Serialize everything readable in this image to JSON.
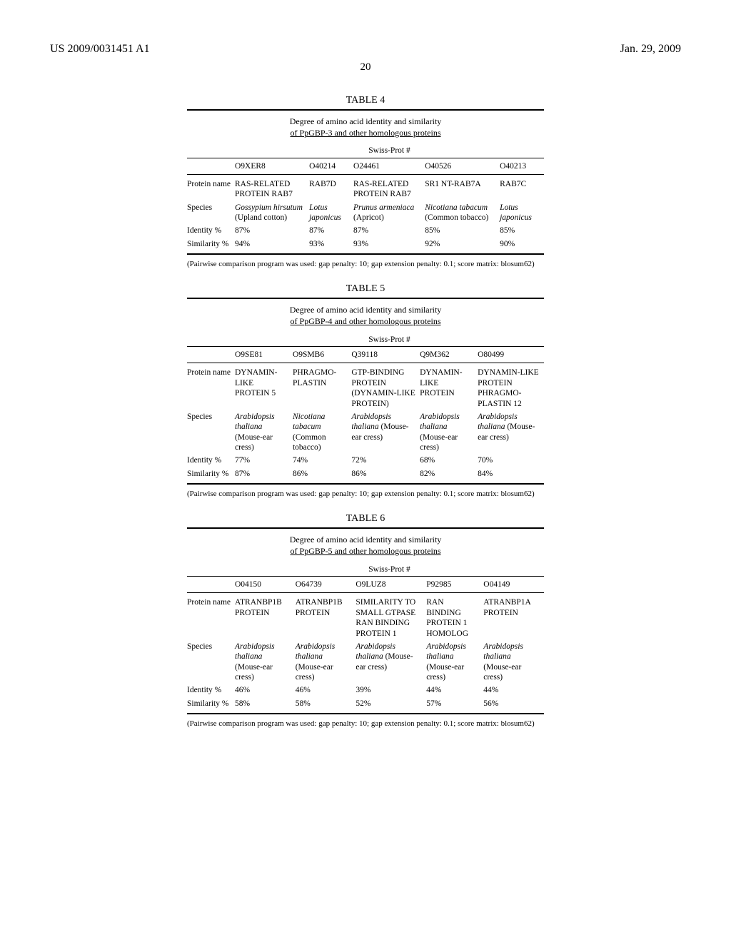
{
  "header": {
    "pub_number": "US 2009/0031451 A1",
    "date": "Jan. 29, 2009"
  },
  "page_number": "20",
  "table4": {
    "title": "TABLE 4",
    "caption_line1": "Degree of amino acid identity and similarity",
    "caption_line2": "of PpGBP-3 and other homologous proteins",
    "swissprot_label": "Swiss-Prot #",
    "columns": [
      "O9XER8",
      "O40214",
      "O24461",
      "O40526",
      "O40213"
    ],
    "rows": [
      {
        "label": "Protein name",
        "cells": [
          "RAS-RELATED PROTEIN RAB7",
          "RAB7D",
          "RAS-RELATED PROTEIN RAB7",
          "SR1 NT-RAB7A",
          "RAB7C"
        ]
      },
      {
        "label": "Species",
        "italic": true,
        "cells": [
          "Gossypium hirsutum (Upland cotton)",
          "Lotus japonicus",
          "Prunus armeniaca (Apricot)",
          "Nicotiana tabacum (Common tobacco)",
          "Lotus japonicus"
        ]
      },
      {
        "label": "Identity %",
        "cells": [
          "87%",
          "87%",
          "87%",
          "85%",
          "85%"
        ]
      },
      {
        "label": "Similarity %",
        "cells": [
          "94%",
          "93%",
          "93%",
          "92%",
          "90%"
        ]
      }
    ],
    "footnote": "(Pairwise comparison program was used: gap penalty: 10; gap extension penalty: 0.1; score matrix: blosum62)"
  },
  "table5": {
    "title": "TABLE 5",
    "caption_line1": "Degree of amino acid identity and similarity",
    "caption_line2": "of PpGBP-4 and other homologous proteins",
    "swissprot_label": "Swiss-Prot #",
    "columns": [
      "O9SE81",
      "O9SMB6",
      "Q39118",
      "Q9M362",
      "O80499"
    ],
    "rows": [
      {
        "label": "Protein name",
        "cells": [
          "DYNAMIN-LIKE PROTEIN 5",
          "PHRAGMO-PLASTIN",
          "GTP-BINDING PROTEIN (DYNAMIN-LIKE PROTEIN)",
          "DYNAMIN-LIKE PROTEIN",
          "DYNAMIN-LIKE PROTEIN PHRAGMO-PLASTIN 12"
        ]
      },
      {
        "label": "Species",
        "italic": true,
        "cells": [
          "Arabidopsis thaliana (Mouse-ear cress)",
          "Nicotiana tabacum (Common tobacco)",
          "Arabidopsis thaliana (Mouse-ear cress)",
          "Arabidopsis thaliana (Mouse-ear cress)",
          "Arabidopsis thaliana (Mouse-ear cress)"
        ]
      },
      {
        "label": "Identity %",
        "cells": [
          "77%",
          "74%",
          "72%",
          "68%",
          "70%"
        ]
      },
      {
        "label": "Similarity %",
        "cells": [
          "87%",
          "86%",
          "86%",
          "82%",
          "84%"
        ]
      }
    ],
    "footnote": "(Pairwise comparison program was used: gap penalty: 10; gap extension penalty: 0.1; score matrix: blosum62)"
  },
  "table6": {
    "title": "TABLE 6",
    "caption_line1": "Degree of amino acid identity and similarity",
    "caption_line2": "of PpGBP-5 and other homologous proteins",
    "swissprot_label": "Swiss-Prot #",
    "columns": [
      "O04150",
      "O64739",
      "O9LUZ8",
      "P92985",
      "O04149"
    ],
    "rows": [
      {
        "label": "Protein name",
        "cells": [
          "ATRANBP1B PROTEIN",
          "ATRANBP1B PROTEIN",
          "SIMILARITY TO SMALL GTPASE RAN BINDING PROTEIN 1",
          "RAN BINDING PROTEIN 1 HOMOLOG",
          "ATRANBP1A PROTEIN"
        ]
      },
      {
        "label": "Species",
        "italic": true,
        "cells": [
          "Arabidopsis thaliana (Mouse-ear cress)",
          "Arabidopsis thaliana (Mouse-ear cress)",
          "Arabidopsis thaliana (Mouse-ear cress)",
          "Arabidopsis thaliana (Mouse-ear cress)",
          "Arabidopsis thaliana (Mouse-ear cress)"
        ]
      },
      {
        "label": "Identity %",
        "cells": [
          "46%",
          "46%",
          "39%",
          "44%",
          "44%"
        ]
      },
      {
        "label": "Similarity %",
        "cells": [
          "58%",
          "58%",
          "52%",
          "57%",
          "56%"
        ]
      }
    ],
    "footnote": "(Pairwise comparison program was used: gap penalty: 10; gap extension penalty: 0.1; score matrix: blosum62)"
  }
}
